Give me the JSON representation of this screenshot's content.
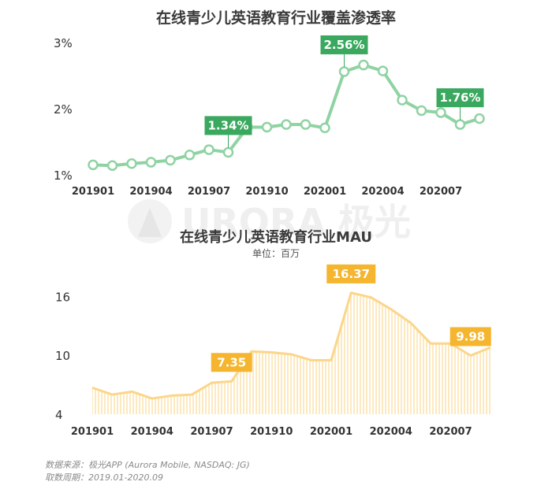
{
  "watermark": "URORA 极光",
  "footer": {
    "source": "数据来源：极光APP (Aurora Mobile, NASDAQ: JG)",
    "period": "取数周期：2019.01-2020.09"
  },
  "colors": {
    "coverage_line": "#8fd3a3",
    "coverage_label_bg": "#3aa85e",
    "mau_line": "#fbd68b",
    "mau_label_bg": "#f5b52e",
    "mau_fill_stripe": "#fde9bf",
    "axis_text": "#333333"
  },
  "chart_data": [
    {
      "type": "line",
      "title": "在线青少儿英语教育行业覆盖渗透率",
      "xlabel": "",
      "ylabel": "",
      "ylim": [
        1,
        3
      ],
      "yticks": [
        "1%",
        "2%",
        "3%"
      ],
      "ytick_values": [
        1,
        2,
        3
      ],
      "x": [
        "201901",
        "201902",
        "201903",
        "201904",
        "201905",
        "201906",
        "201907",
        "201908",
        "201909",
        "201910",
        "201911",
        "201912",
        "202001",
        "202002",
        "202003",
        "202004",
        "202005",
        "202006",
        "202007",
        "202008",
        "202009"
      ],
      "xticks": [
        "201901",
        "201904",
        "201907",
        "201910",
        "202001",
        "202004",
        "202007"
      ],
      "series": [
        {
          "values": [
            1.15,
            1.14,
            1.17,
            1.19,
            1.22,
            1.3,
            1.38,
            1.34,
            1.72,
            1.72,
            1.76,
            1.76,
            1.71,
            2.56,
            2.66,
            2.57,
            2.13,
            1.97,
            1.94,
            1.76,
            1.85
          ]
        }
      ],
      "annotations": [
        {
          "index": 7,
          "text": "1.34%"
        },
        {
          "index": 13,
          "text": "2.56%"
        },
        {
          "index": 19,
          "text": "1.76%"
        }
      ],
      "grid": false
    },
    {
      "type": "area",
      "title": "在线青少儿英语教育行业MAU",
      "subtitle": "单位：百万",
      "xlabel": "",
      "ylabel": "",
      "ylim": [
        4,
        17
      ],
      "yticks": [
        "4",
        "10",
        "16"
      ],
      "ytick_values": [
        4,
        10,
        16
      ],
      "x": [
        "201901",
        "201902",
        "201903",
        "201904",
        "201905",
        "201906",
        "201907",
        "201908",
        "201909",
        "201910",
        "201911",
        "201912",
        "202001",
        "202002",
        "202003",
        "202004",
        "202005",
        "202006",
        "202007",
        "202008",
        "202009"
      ],
      "xticks": [
        "201901",
        "201904",
        "201907",
        "201910",
        "202001",
        "202004",
        "202007"
      ],
      "series": [
        {
          "values": [
            6.7,
            6.0,
            6.3,
            5.6,
            5.9,
            6.0,
            7.2,
            7.35,
            10.4,
            10.3,
            10.1,
            9.5,
            9.5,
            16.37,
            15.9,
            14.7,
            13.3,
            11.2,
            11.2,
            9.98,
            10.8
          ]
        }
      ],
      "annotations": [
        {
          "index": 7,
          "text": "7.35"
        },
        {
          "index": 13,
          "text": "16.37"
        },
        {
          "index": 19,
          "text": "9.98"
        }
      ],
      "grid": false
    }
  ]
}
